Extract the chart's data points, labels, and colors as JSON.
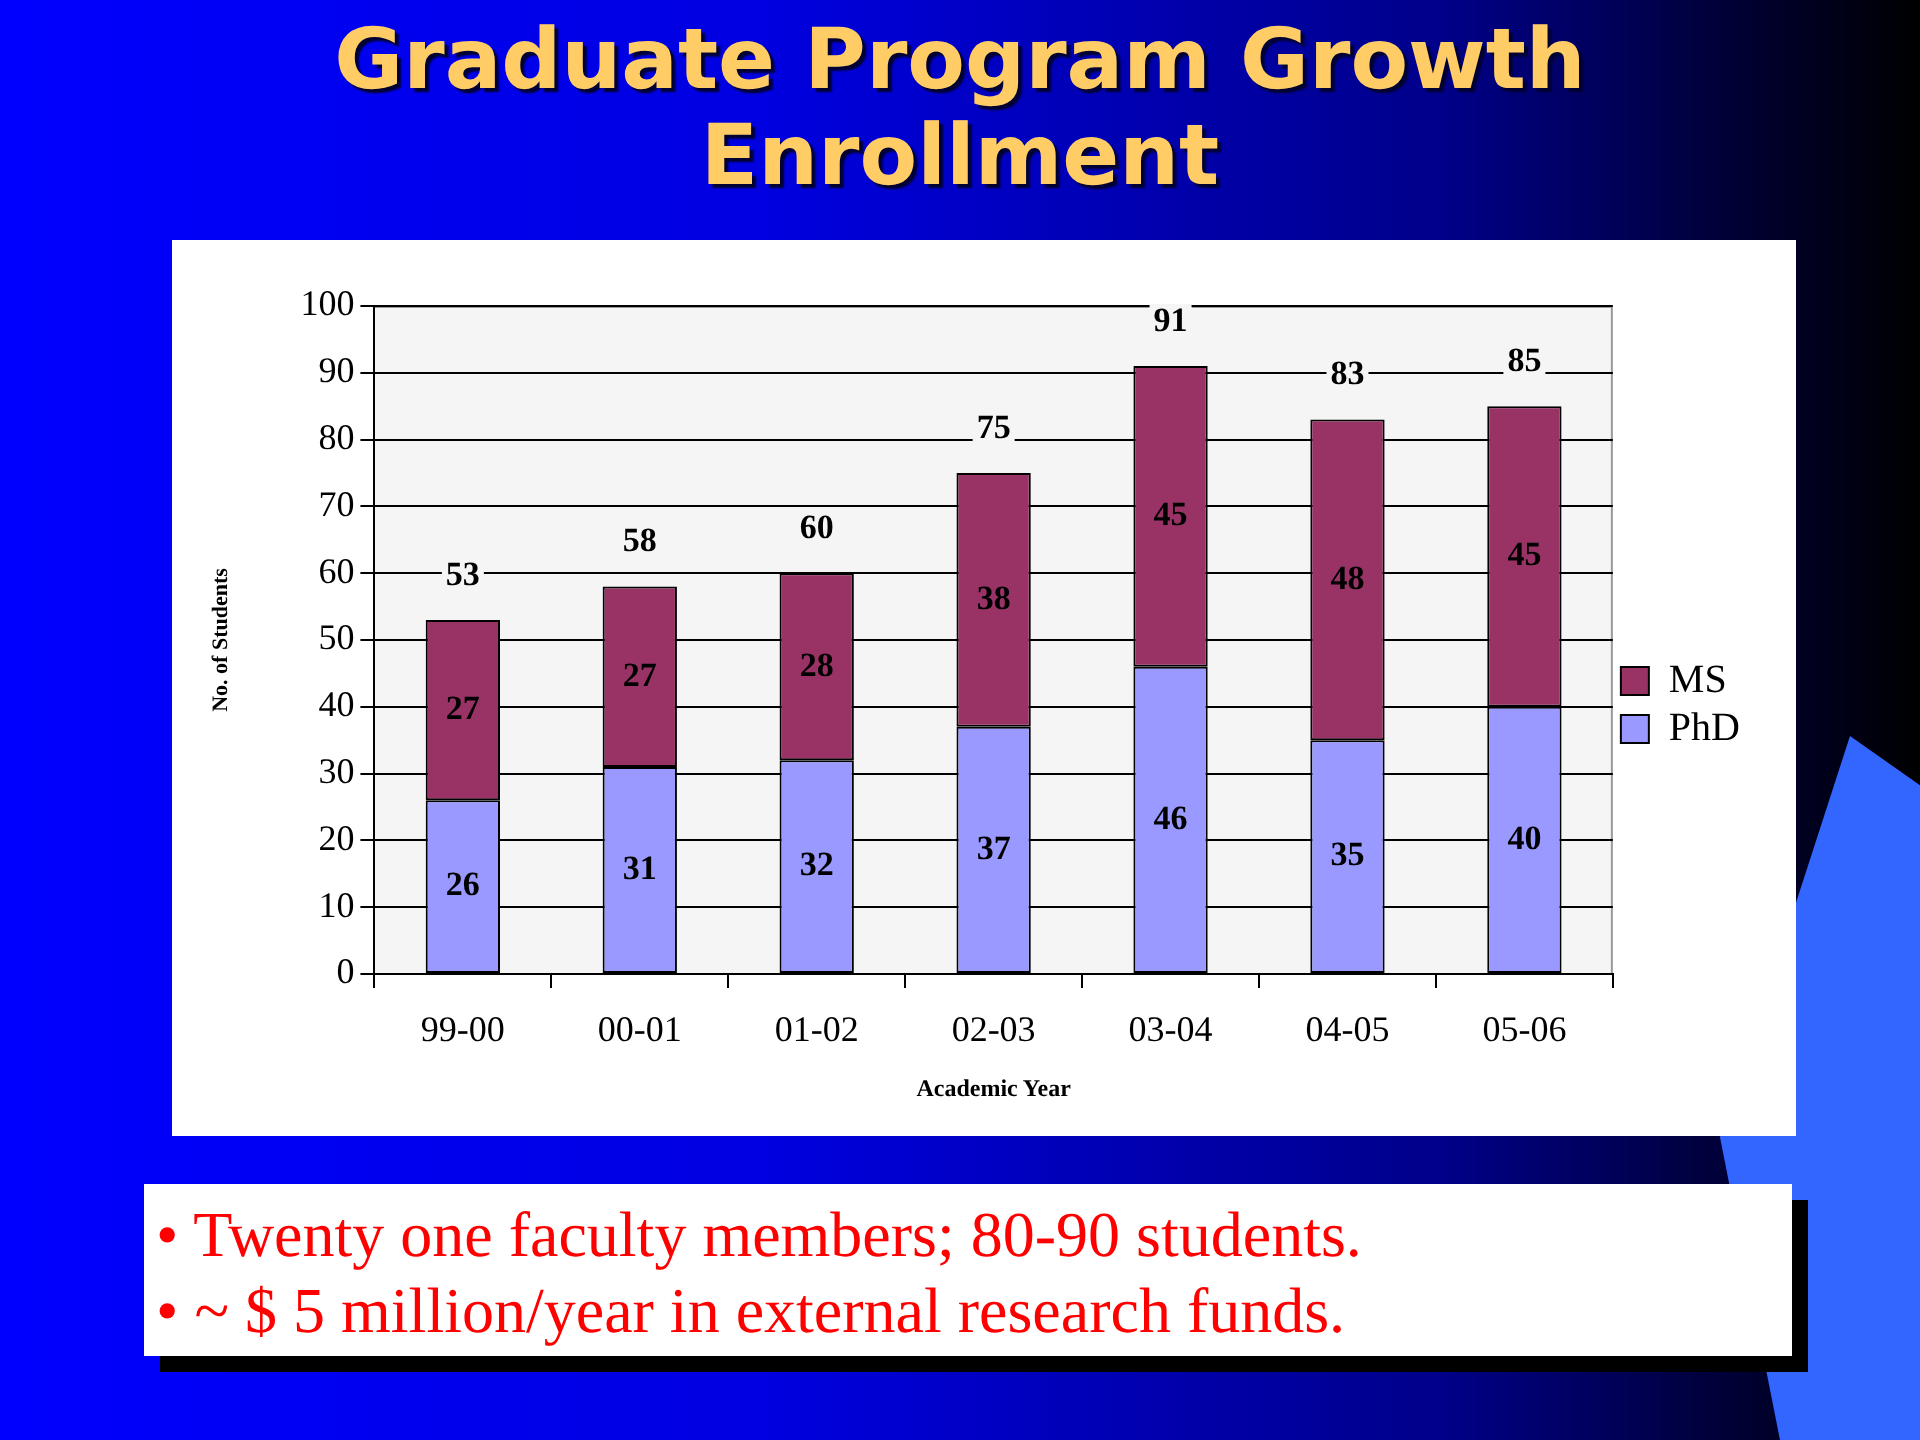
{
  "chart_data": {
    "type": "bar",
    "title": "Graduate Program Growth Enrollment",
    "xlabel": "Academic Year",
    "ylabel": "No. of Students",
    "categories": [
      "99-00",
      "00-01",
      "01-02",
      "02-03",
      "03-04",
      "04-05",
      "05-06"
    ],
    "series": [
      {
        "name": "PhD",
        "color": "#9999ff",
        "values": [
          26,
          31,
          32,
          37,
          46,
          35,
          40
        ]
      },
      {
        "name": "MS",
        "color": "#993366",
        "values": [
          27,
          27,
          28,
          38,
          45,
          48,
          45
        ]
      }
    ],
    "stacked": true,
    "ylim": [
      0,
      100
    ],
    "yticks": [
      0,
      10,
      20,
      30,
      40,
      50,
      60,
      70,
      80,
      90,
      100
    ],
    "grid": "y",
    "legend": "right",
    "data_labels": true,
    "totals": [
      "53",
      "58",
      "60",
      "75",
      "91",
      "83",
      "85"
    ],
    "annotations": [
      "• Twenty one faculty members; 80-90 students.",
      "• ~ $ 5 million/year in external research funds."
    ]
  }
}
